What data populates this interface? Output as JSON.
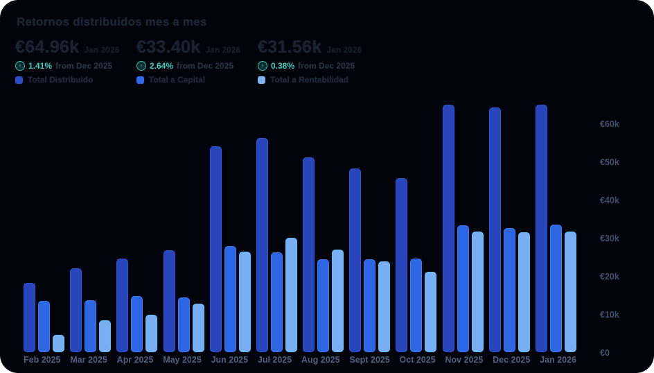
{
  "title": "Retornos distribuidos mes a mes",
  "kpis": [
    {
      "value": "€64.96k",
      "period": "Jan 2026",
      "change_pct": "1.41%",
      "change_label": "from Dec 2025",
      "trend": "up",
      "legend": "Total Distribuido",
      "color": "#2a4cc4"
    },
    {
      "value": "€33.40k",
      "period": "Jan 2026",
      "change_pct": "2.64%",
      "change_label": "from Dec 2025",
      "trend": "up",
      "legend": "Total a Capital",
      "color": "#2b68ea"
    },
    {
      "value": "€31.56k",
      "period": "Jan 2026",
      "change_pct": "0.38%",
      "change_label": "from Dec 2025",
      "trend": "up",
      "legend": "Total a Rentabilidad",
      "color": "#7db3f4"
    }
  ],
  "icons": {
    "trend_up": "↑"
  },
  "chart_data": {
    "type": "bar",
    "title": "Retornos distribuidos mes a mes",
    "categories": [
      "Feb 2025",
      "Mar 2025",
      "Apr 2025",
      "May 2025",
      "Jun 2025",
      "Jul 2025",
      "Aug 2025",
      "Sept 2025",
      "Oct 2025",
      "Nov 2025",
      "Dec 2025",
      "Jan 2026"
    ],
    "unit": "€ thousands",
    "series": [
      {
        "name": "Total Distribuido",
        "color": "#2746bb",
        "border_color": "#3157d8",
        "values": [
          18.2,
          22.0,
          24.5,
          26.7,
          54.0,
          56.2,
          51.1,
          48.2,
          45.6,
          65.0,
          64.1,
          64.96
        ]
      },
      {
        "name": "Total a Capital",
        "color": "#2d66e4",
        "border_color": "#3f7df2",
        "values": [
          13.5,
          13.6,
          14.7,
          14.4,
          27.8,
          26.2,
          24.4,
          24.4,
          24.5,
          33.2,
          32.5,
          33.4
        ]
      },
      {
        "name": "Total a Rentabilidad",
        "color": "#79aff3",
        "border_color": "#5fc2fd",
        "values": [
          4.5,
          8.4,
          9.8,
          12.7,
          26.4,
          30.0,
          26.9,
          23.8,
          21.1,
          31.7,
          31.4,
          31.56
        ]
      }
    ],
    "xlabel": "",
    "ylabel": "",
    "ylim": [
      0,
      66
    ],
    "y_ticks": [
      {
        "label": "€0",
        "value": 0
      },
      {
        "label": "€10k",
        "value": 10
      },
      {
        "label": "€20k",
        "value": 20
      },
      {
        "label": "€30k",
        "value": 30
      },
      {
        "label": "€40k",
        "value": 40
      },
      {
        "label": "€50k",
        "value": 50
      },
      {
        "label": "€60k",
        "value": 60
      }
    ],
    "grid": false,
    "legend_position": "top-left",
    "axis_side": "right"
  }
}
